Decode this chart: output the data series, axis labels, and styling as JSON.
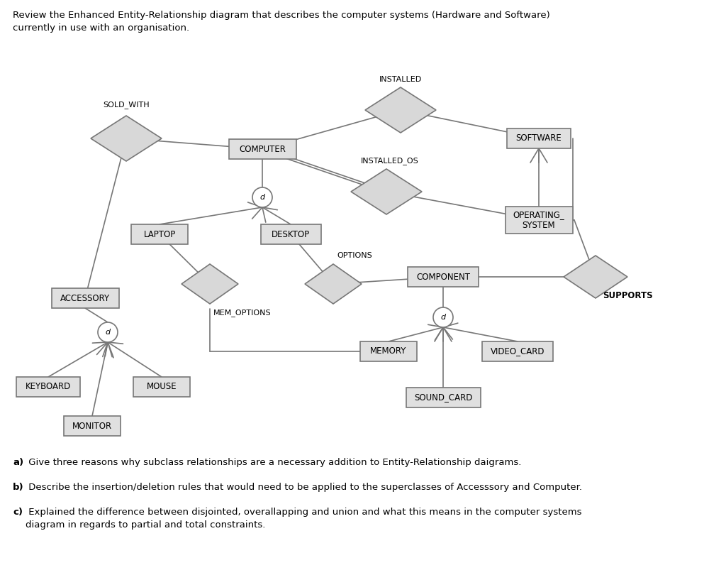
{
  "title_text": "Review the Enhanced Entity-Relationship diagram that describes the computer systems (Hardware and Software)\ncurrently in use with an organisation.",
  "footer_a_bold": "a)",
  "footer_a_rest": " Give three reasons why subclass relationships are a necessary addition to Entity-Relationship daigrams.",
  "footer_b_bold": "b)",
  "footer_b_rest": " Describe the insertion/deletion rules that would need to be applied to the superclasses of Accesssory and Computer.",
  "footer_c_bold": "c)",
  "footer_c_rest": " Explained the difference between disjointed, overallapping and union and what this means in the computer systems\ndiagram in regards to partial and total constraints.",
  "bg_color": "#ffffff",
  "entity_fill": "#e0e0e0",
  "entity_edge": "#777777",
  "diamond_fill": "#d8d8d8",
  "diamond_edge": "#777777",
  "line_color": "#777777",
  "text_color": "#000000"
}
